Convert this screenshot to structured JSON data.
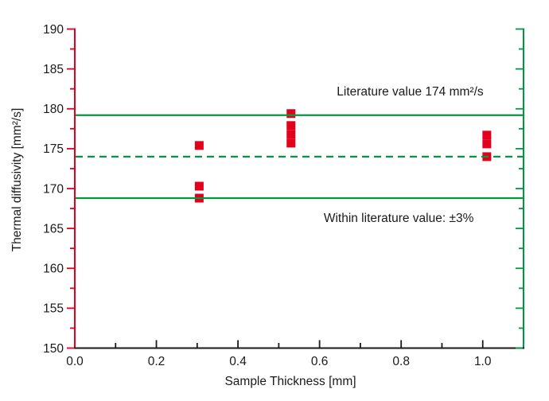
{
  "chart_data": {
    "type": "scatter",
    "title": "",
    "xlabel": "Sample Thickness [mm]",
    "ylabel": "Thermal diffusivity [mm²/s]",
    "xlim": [
      0.0,
      1.1
    ],
    "ylim": [
      150,
      190
    ],
    "grid": false,
    "legend": false,
    "x_ticks": {
      "major": [
        0.0,
        0.2,
        0.4,
        0.6,
        0.8,
        1.0
      ],
      "labels": [
        "0.0",
        "0.2",
        "0.4",
        "0.6",
        "0.8",
        "1.0"
      ],
      "minor_step": 0.1
    },
    "y_ticks": {
      "major": [
        150,
        155,
        160,
        165,
        170,
        175,
        180,
        185,
        190
      ],
      "labels": [
        "150",
        "155",
        "160",
        "165",
        "170",
        "175",
        "180",
        "185",
        "190"
      ],
      "minor_step": 2.5
    },
    "axis_colors": {
      "left": "#e2001a",
      "right": "#009a3e",
      "bottom": "#1a1a1a"
    },
    "series": [
      {
        "marker": "square",
        "color": "#e2001a",
        "points": [
          [
            0.305,
            175.4
          ],
          [
            0.305,
            170.3
          ],
          [
            0.305,
            168.8
          ],
          [
            0.53,
            179.4
          ],
          [
            0.53,
            177.9
          ],
          [
            0.53,
            176.8
          ],
          [
            0.53,
            175.7
          ],
          [
            1.01,
            176.7
          ],
          [
            1.01,
            175.6
          ],
          [
            1.01,
            174.0
          ]
        ]
      }
    ],
    "reference_lines": [
      {
        "y": 179.2,
        "style": "solid",
        "color": "#009a3e"
      },
      {
        "y": 174.0,
        "style": "dashed",
        "color": "#009a3e"
      },
      {
        "y": 168.8,
        "style": "solid",
        "color": "#009a3e"
      }
    ],
    "annotations": [
      {
        "text": "Literature value 174 mm²/s",
        "x": 0.822,
        "y": 182.1
      },
      {
        "text": "Within literature value: ±3%",
        "x": 0.794,
        "y": 166.2
      }
    ]
  }
}
